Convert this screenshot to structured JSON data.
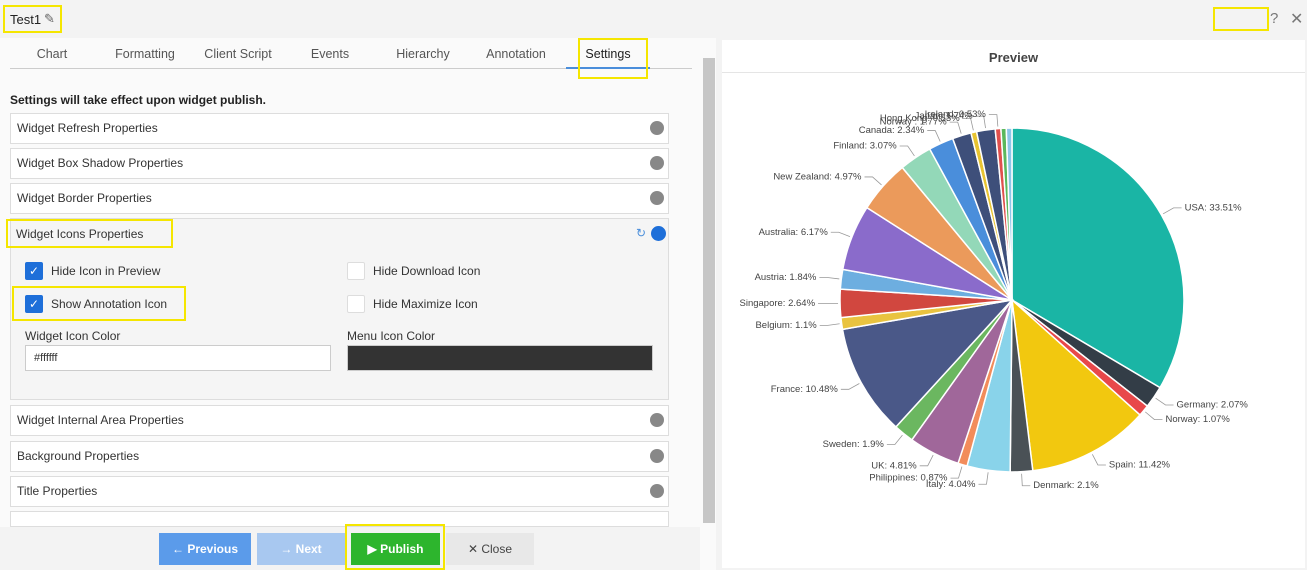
{
  "header": {
    "title": "Test1"
  },
  "tabs": [
    "Chart",
    "Formatting",
    "Client Script",
    "Events",
    "Hierarchy",
    "Annotation",
    "Settings"
  ],
  "active_tab": 6,
  "notice": "Settings will take effect upon widget publish.",
  "sections_top": [
    "Widget Refresh Properties",
    "Widget Box Shadow Properties",
    "Widget Border Properties"
  ],
  "expanded": {
    "title": "Widget Icons Properties",
    "checkboxes": [
      {
        "label": "Hide Icon in Preview",
        "checked": true
      },
      {
        "label": "Hide Download Icon",
        "checked": false
      },
      {
        "label": "Show Annotation Icon",
        "checked": true
      },
      {
        "label": "Hide Maximize Icon",
        "checked": false
      }
    ],
    "fields": [
      {
        "label": "Widget Icon Color",
        "value": "#ffffff"
      },
      {
        "label": "Menu Icon Color",
        "color": "#333333"
      }
    ]
  },
  "sections_bottom": [
    "Widget Internal Area Properties",
    "Background Properties",
    "Title Properties"
  ],
  "buttons": [
    "Previous",
    "Next",
    "Publish",
    "Close"
  ],
  "preview": {
    "title": "Preview",
    "chart": {
      "type": "pie",
      "categories": [
        "USA",
        "Germany",
        "Norway",
        "Spain",
        "Denmark",
        "Italy",
        "Philippines",
        "UK",
        "Sweden",
        "France",
        "Belgium",
        "Singapore",
        "Austria",
        "Australia",
        "New Zealand",
        "Finland",
        "Canada",
        "Norway",
        "Hong Kong",
        "Japan",
        "Ireland",
        null,
        null
      ],
      "values": [
        33.51,
        2.07,
        1.07,
        11.42,
        2.1,
        4.04,
        0.87,
        4.81,
        1.9,
        10.48,
        1.1,
        2.64,
        1.84,
        6.17,
        4.97,
        3.07,
        2.34,
        1.77,
        0.53,
        1.74,
        0.53,
        0.5,
        0.53
      ],
      "value_labels": [
        "USA: 33.51%",
        "Germany: 2.07%",
        "Norway: 1.07%",
        "Spain: 11.42%",
        "Denmark: 2.1%",
        "Italy: 4.04%",
        "Philippines: 0.87%",
        "UK: 4.81%",
        "Sweden: 1.9%",
        "France: 10.48%",
        "Belgium: 1.1%",
        "Singapore: 2.64%",
        "Austria: 1.84%",
        "Australia: 6.17%",
        "New Zealand: 4.97%",
        "Finland: 3.07%",
        "Canada: 2.34%",
        "Norway : 1.77%",
        "Hong Kong: 0.53%",
        "Japan: 1.74%",
        "Ireland: 0.53%",
        null,
        null
      ],
      "colors": [
        "#1ab5a5",
        "#333d47",
        "#e8484a",
        "#f2c80f",
        "#4a5156",
        "#89d3ea",
        "#f28c5b",
        "#a0679a",
        "#6bb760",
        "#4a5888",
        "#e9c340",
        "#d1473f",
        "#6daee0",
        "#8a6bcb",
        "#eb9a5b",
        "#93d8b8",
        "#4a8edb",
        "#3e4f7a",
        "#e8c431",
        "#3e4f7a",
        "#e0504d",
        "#5cb85c",
        "#8dc6e8"
      ]
    }
  }
}
